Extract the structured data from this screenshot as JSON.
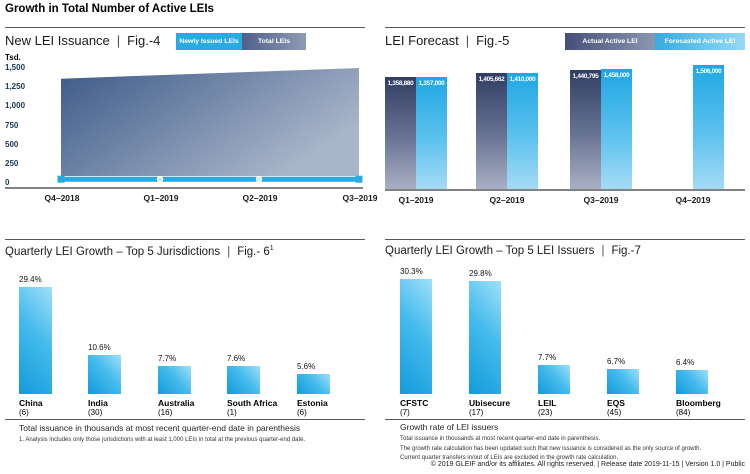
{
  "page": {
    "title": "Growth in Total Number of Active LEIs",
    "separator": "|",
    "copyright": "© 2019 GLEIF and/or its affiliates. All rights reserved.  |  Release date 2019-11-15  |  Version 1.0  |  Public"
  },
  "colors": {
    "brand_cyan": "#29abe2",
    "actual_bar_top": "#313d63",
    "actual_bar_bottom": "#a9b0c5",
    "forecast_bar_top": "#1fa7e3",
    "forecast_bar_bottom": "#a5dbf6",
    "area_dark": "#3d5a88",
    "area_light": "#a9b6ca",
    "axis_label_blue": "#17365d",
    "axis_line_gray": "#828282"
  },
  "chart_data": [
    {
      "id": "fig4",
      "type": "area",
      "title": "New LEI Issuance",
      "figure": "Fig.-4",
      "unit_label": "Tsd.",
      "legend": [
        {
          "label": "Newly Issued LEIs",
          "color": "#29abe2"
        },
        {
          "label": "Total LEIs",
          "color": "#4f6089"
        }
      ],
      "x": [
        "Q4–2018",
        "Q1–2019",
        "Q2–2019",
        "Q3–2019"
      ],
      "ylim": [
        0,
        1500
      ],
      "yticks": [
        0,
        250,
        500,
        750,
        1000,
        1250,
        1500
      ],
      "ytick_labels": [
        "0",
        "250",
        "500",
        "750",
        "1,000",
        "1,250",
        "1,500"
      ],
      "series": [
        {
          "name": "Total LEIs",
          "type": "area",
          "values": [
            1360,
            1407,
            1453,
            1500
          ]
        },
        {
          "name": "Newly Issued LEIs",
          "type": "line",
          "values": [
            50,
            50,
            50,
            50
          ]
        }
      ],
      "legend_position": "top-right",
      "grid": false
    },
    {
      "id": "fig5",
      "type": "bar",
      "title": "LEI Forecast",
      "figure": "Fig.-5",
      "legend": [
        {
          "label": "Actual Active LEI",
          "color": "#454f78"
        },
        {
          "label": "Forecasted Active LEI",
          "color": "#35ace0"
        }
      ],
      "categories": [
        "Q1–2019",
        "Q2–2019",
        "Q3–2019",
        "Q4–2019"
      ],
      "ylim": [
        0,
        1506000
      ],
      "series": [
        {
          "name": "Actual Active LEI",
          "values": [
            1358880,
            1405662,
            1440795,
            null
          ],
          "labels": [
            "1,358,880",
            "1,405,662",
            "1,440,795",
            null
          ]
        },
        {
          "name": "Forecasted Active LEI",
          "values": [
            1357000,
            1410000,
            1458000,
            1506000
          ],
          "labels": [
            "1,357,000",
            "1,410,000",
            "1,458,000",
            "1,506,000"
          ]
        }
      ],
      "legend_position": "top-right",
      "grid": false
    },
    {
      "id": "fig6",
      "type": "bar",
      "title": "Quarterly LEI Growth – Top 5 Jurisdictions",
      "figure": "Fig.- 6",
      "figure_sup": "1",
      "categories": [
        "China",
        "India",
        "Australia",
        "South Africa",
        "Estonia"
      ],
      "category_sublabels": [
        "(6)",
        "(30)",
        "(16)",
        "(1)",
        "(6)"
      ],
      "values": [
        29.4,
        10.6,
        7.7,
        7.6,
        5.6
      ],
      "value_labels": [
        "29.4%",
        "10.6%",
        "7.7%",
        "7.6%",
        "5.6%"
      ],
      "footnote": "Total issuance in thousands at most recent quarter-end date in parenthesis",
      "footnote_small": "1. Analysis includes only those jurisdictions with at least 1,000 LEIs in total at the previous quarter-end date.",
      "grid": false
    },
    {
      "id": "fig7",
      "type": "bar",
      "title": "Quarterly LEI Growth – Top 5 LEI Issuers",
      "figure": "Fig.-7",
      "categories": [
        "CFSTC",
        "Ubisecure",
        "LEIL",
        "EQS",
        "Bloomberg"
      ],
      "category_sublabels": [
        "(7)",
        "(17)",
        "(23)",
        "(45)",
        "(84)"
      ],
      "values": [
        30.3,
        29.8,
        7.7,
        6.7,
        6.4
      ],
      "value_labels": [
        "30.3%",
        "29.8%",
        "7.7%",
        "6.7%",
        "6.4%"
      ],
      "footnote_heading": "Growth rate of LEI issuers",
      "footnotes": [
        "Total issuance in thousands at most recent quarter-end date in parenthesis.",
        "The growth rate calculation has been updated such that new issuance is considered as the only source of growth. Current quarter transfers in/out of LEIs are excluded in the growth rate calculation."
      ],
      "grid": false
    }
  ]
}
